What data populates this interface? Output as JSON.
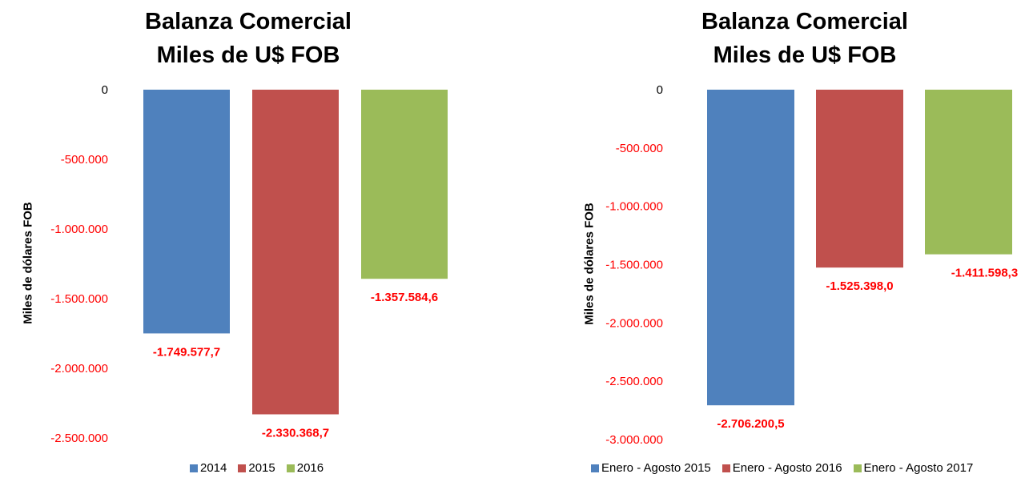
{
  "colors": {
    "series1": "#4f81bd",
    "series2": "#c0504d",
    "series3": "#9bbb59",
    "negative_tick": "#ff0000",
    "zero_tick": "#000000"
  },
  "chart_data": [
    {
      "type": "bar",
      "title_line1": "Balanza Comercial",
      "title_line2": "Miles de U$ FOB",
      "ylabel": "Miles de dólares FOB",
      "ylim": [
        -2500000,
        0
      ],
      "yticks": [
        0,
        -500000,
        -1000000,
        -1500000,
        -2000000,
        -2500000
      ],
      "ytick_labels": [
        "0",
        "-500.000",
        "-1.000.000",
        "-1.500.000",
        "-2.000.000",
        "-2.500.000"
      ],
      "categories": [
        "2014",
        "2015",
        "2016"
      ],
      "values": [
        -1749577.7,
        -2330368.7,
        -1357584.6
      ],
      "data_labels": [
        "-1.749.577,7",
        "-2.330.368,7",
        "-1.357.584,6"
      ],
      "legend": [
        "2014",
        "2015",
        "2016"
      ],
      "legend_position": "bottom"
    },
    {
      "type": "bar",
      "title_line1": "Balanza Comercial",
      "title_line2": "Miles de U$ FOB",
      "ylabel": "Miles de dólares FOB",
      "ylim": [
        -3000000,
        0
      ],
      "yticks": [
        0,
        -500000,
        -1000000,
        -1500000,
        -2000000,
        -2500000,
        -3000000
      ],
      "ytick_labels": [
        "0",
        "-500.000",
        "-1.000.000",
        "-1.500.000",
        "-2.000.000",
        "-2.500.000",
        "-3.000.000"
      ],
      "categories": [
        "Enero - Agosto 2015",
        "Enero - Agosto 2016",
        "Enero - Agosto 2017"
      ],
      "values": [
        -2706200.5,
        -1525398.0,
        -1411598.3
      ],
      "data_labels": [
        "-2.706.200,5",
        "-1.525.398,0",
        "-1.411.598,3"
      ],
      "legend": [
        "Enero - Agosto 2015",
        "Enero - Agosto 2016",
        "Enero - Agosto 2017"
      ],
      "legend_position": "bottom"
    }
  ]
}
